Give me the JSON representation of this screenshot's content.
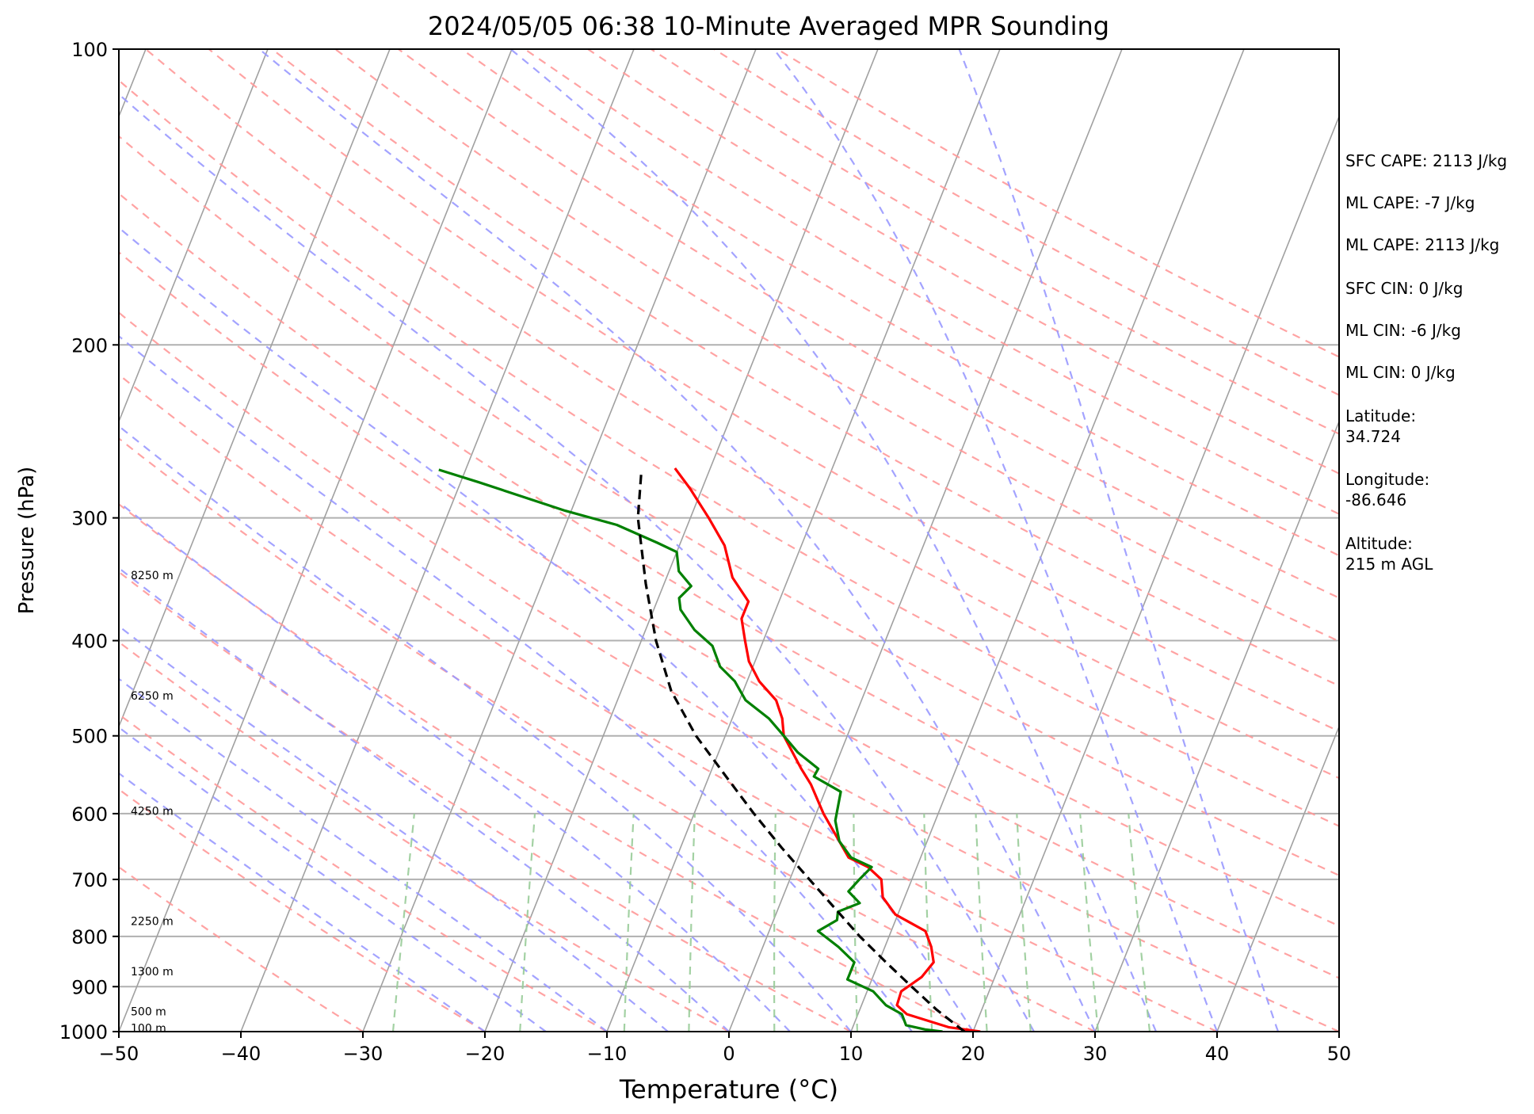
{
  "chart_data": {
    "type": "line",
    "title": "2024/05/05 06:38 10-Minute Averaged MPR Sounding",
    "xlabel": "Temperature (°C)",
    "ylabel": "Pressure (hPa)",
    "xlim": [
      -50,
      50
    ],
    "ylim": [
      1000,
      100
    ],
    "y_scale": "log",
    "x_ticks": [
      "−50",
      "−40",
      "−30",
      "−20",
      "−10",
      "0",
      "10",
      "20",
      "30",
      "40",
      "50"
    ],
    "y_ticks": [
      "100",
      "200",
      "300",
      "400",
      "500",
      "600",
      "700",
      "800",
      "900",
      "1000"
    ],
    "grid": true,
    "height_labels": [
      {
        "text": "100 m",
        "p": 992
      },
      {
        "text": "500 m",
        "p": 954
      },
      {
        "text": "1300 m",
        "p": 868
      },
      {
        "text": "2250 m",
        "p": 772
      },
      {
        "text": "4250 m",
        "p": 596
      },
      {
        "text": "6250 m",
        "p": 455
      },
      {
        "text": "8250 m",
        "p": 343
      }
    ],
    "series": [
      {
        "role": "temperature",
        "color": "#ff0000",
        "points": [
          [
            1000,
            20.6
          ],
          [
            990,
            17.9
          ],
          [
            960,
            14.0
          ],
          [
            940,
            12.9
          ],
          [
            910,
            12.8
          ],
          [
            880,
            14.0
          ],
          [
            850,
            14.5
          ],
          [
            820,
            13.8
          ],
          [
            790,
            12.8
          ],
          [
            760,
            9.8
          ],
          [
            730,
            8.2
          ],
          [
            700,
            7.5
          ],
          [
            680,
            6.0
          ],
          [
            665,
            4.1
          ],
          [
            600,
            0.6
          ],
          [
            560,
            -1.4
          ],
          [
            540,
            -2.7
          ],
          [
            500,
            -5.2
          ],
          [
            480,
            -5.9
          ],
          [
            460,
            -7.0
          ],
          [
            440,
            -9.0
          ],
          [
            420,
            -10.5
          ],
          [
            400,
            -11.5
          ],
          [
            380,
            -12.5
          ],
          [
            365,
            -12.5
          ],
          [
            345,
            -14.6
          ],
          [
            320,
            -16.3
          ],
          [
            300,
            -18.5
          ],
          [
            280,
            -21.0
          ],
          [
            267,
            -22.9
          ]
        ]
      },
      {
        "role": "dewpoint",
        "color": "#008000",
        "points": [
          [
            1000,
            17.5
          ],
          [
            995,
            16.0
          ],
          [
            985,
            14.3
          ],
          [
            960,
            13.6
          ],
          [
            940,
            12.0
          ],
          [
            910,
            10.5
          ],
          [
            885,
            8.0
          ],
          [
            875,
            8.0
          ],
          [
            850,
            8.0
          ],
          [
            820,
            6.2
          ],
          [
            790,
            4.0
          ],
          [
            770,
            5.2
          ],
          [
            755,
            5.0
          ],
          [
            740,
            6.5
          ],
          [
            720,
            5.2
          ],
          [
            700,
            5.7
          ],
          [
            680,
            6.3
          ],
          [
            665,
            4.3
          ],
          [
            640,
            2.8
          ],
          [
            610,
            1.8
          ],
          [
            570,
            1.3
          ],
          [
            550,
            -1.4
          ],
          [
            540,
            -1.3
          ],
          [
            520,
            -3.5
          ],
          [
            500,
            -5.2
          ],
          [
            480,
            -7.0
          ],
          [
            460,
            -9.5
          ],
          [
            440,
            -11.0
          ],
          [
            425,
            -12.7
          ],
          [
            405,
            -14.0
          ],
          [
            390,
            -16.0
          ],
          [
            372,
            -17.8
          ],
          [
            362,
            -18.3
          ],
          [
            352,
            -17.7
          ],
          [
            340,
            -19.2
          ],
          [
            325,
            -20.0
          ],
          [
            318,
            -21.9
          ],
          [
            305,
            -25.8
          ],
          [
            295,
            -30.5
          ],
          [
            276,
            -38.5
          ],
          [
            268,
            -42.2
          ]
        ]
      },
      {
        "role": "parcel",
        "color": "#000000",
        "style": "dashed",
        "points": [
          [
            1000,
            19.3
          ],
          [
            950,
            16.3
          ],
          [
            900,
            13.5
          ],
          [
            850,
            10.6
          ],
          [
            800,
            7.6
          ],
          [
            750,
            4.7
          ],
          [
            700,
            1.6
          ],
          [
            650,
            -1.7
          ],
          [
            600,
            -5.1
          ],
          [
            550,
            -8.6
          ],
          [
            500,
            -12.4
          ],
          [
            450,
            -15.9
          ],
          [
            400,
            -18.8
          ],
          [
            350,
            -21.5
          ],
          [
            300,
            -24.3
          ],
          [
            270,
            -25.5
          ]
        ]
      }
    ],
    "background_lines": {
      "isotherm_color": "#a0a0a0",
      "dry_adiabat_color": "#ff9999",
      "moist_adiabat_color": "#9999ff",
      "mixing_ratio_color": "#99cc99"
    }
  },
  "side_panel": [
    "SFC CAPE: 2113 J/kg",
    "ML CAPE: -7 J/kg",
    "ML CAPE: 2113 J/kg",
    "SFC CIN: 0 J/kg",
    "ML CIN: -6 J/kg",
    "ML CIN: 0 J/kg",
    "Latitude:",
    "34.724",
    "Longitude:",
    "-86.646",
    "Altitude:",
    "215 m AGL"
  ]
}
